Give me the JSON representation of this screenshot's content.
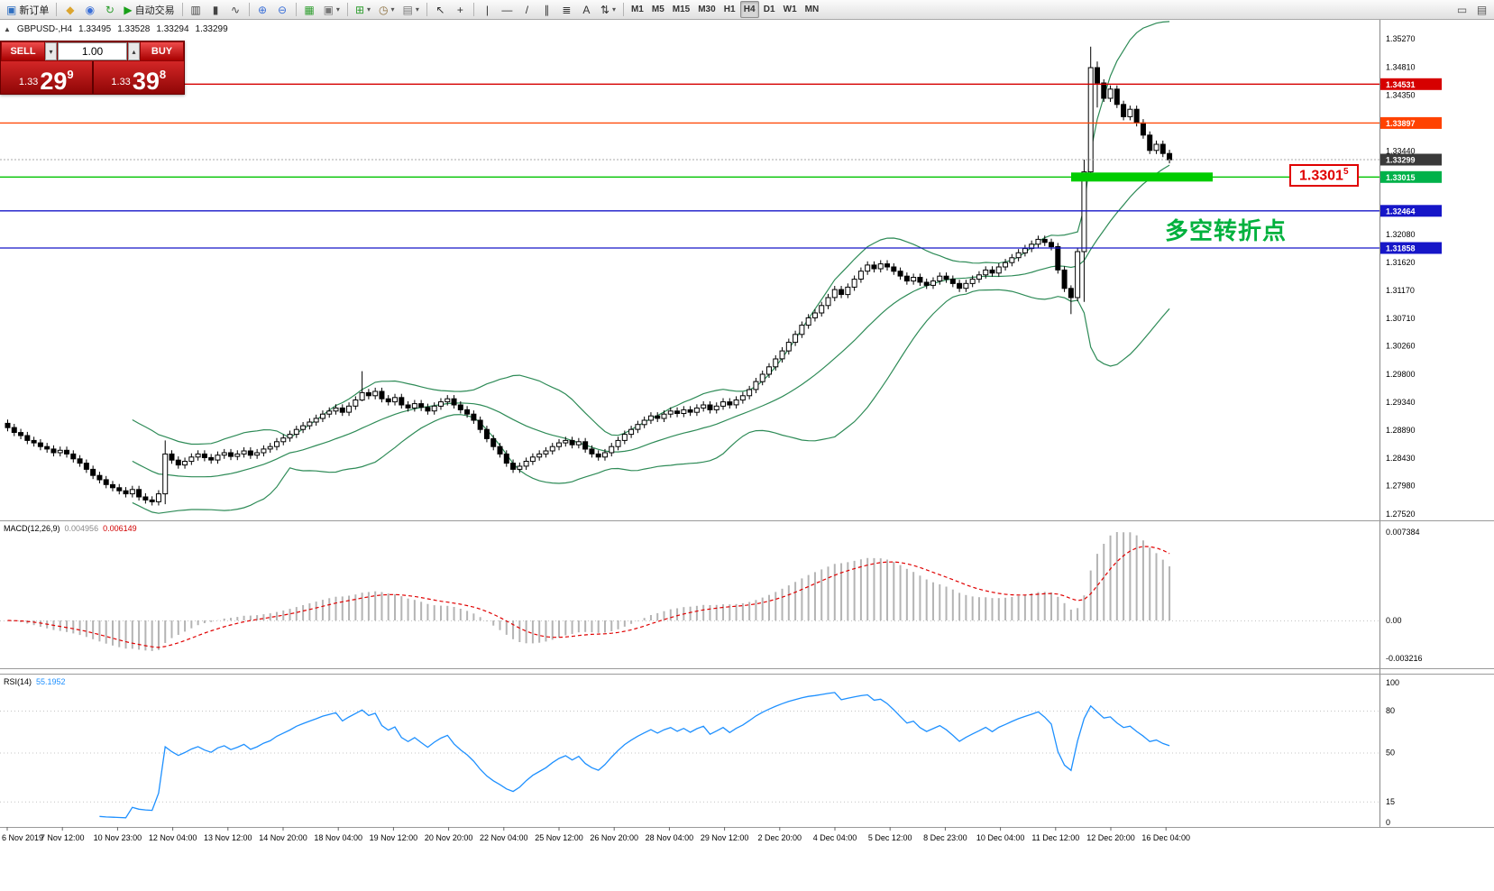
{
  "icons": {
    "caret": "▾",
    "spin_down": "▾",
    "spin_up": "▴",
    "collapse": "▲"
  },
  "colors": {
    "bull": "#ffffff",
    "bear": "#000000",
    "outline": "#000000",
    "bollinger": "#2e8b57",
    "macd_hist": "#b4b4b4",
    "macd_signal": "#e00000",
    "rsi_line": "#1e90ff",
    "grid_dotted": "#c4c4c4",
    "accent_red": "#d60000",
    "accent_orange": "#ff4200",
    "accent_green": "#00c400",
    "accent_blue": "#1616c8"
  },
  "toolbar": {
    "items": [
      {
        "name": "new-order-button",
        "icon": "order-ticket-icon",
        "glyph": "▣",
        "color": "#2f6fc1",
        "label": "新订单"
      },
      {
        "type": "sep"
      },
      {
        "name": "deposit-button",
        "icon": "gold-icon",
        "glyph": "◆",
        "color": "#dca52e"
      },
      {
        "name": "community-button",
        "icon": "globe-icon",
        "glyph": "◉",
        "color": "#3a6fd8"
      },
      {
        "name": "refresh-button",
        "icon": "refresh-icon",
        "glyph": "↻",
        "color": "#2e9e2e"
      },
      {
        "name": "autotrading-button",
        "icon": "play-icon",
        "glyph": "▶",
        "color": "#18a018",
        "label": "自动交易"
      },
      {
        "type": "sep"
      },
      {
        "name": "bar-chart-button",
        "icon": "ohlc-bars-icon",
        "glyph": "▥",
        "color": "#444444"
      },
      {
        "name": "candlestick-chart-button",
        "icon": "candlestick-icon",
        "glyph": "▮",
        "color": "#444444"
      },
      {
        "name": "line-chart-button",
        "icon": "line-chart-icon",
        "glyph": "∿",
        "color": "#444444"
      },
      {
        "type": "sep"
      },
      {
        "name": "zoom-in-button",
        "icon": "zoom-in-icon",
        "glyph": "⊕",
        "color": "#3a6fd8"
      },
      {
        "name": "zoom-out-button",
        "icon": "zoom-out-icon",
        "glyph": "⊖",
        "color": "#3a6fd8"
      },
      {
        "type": "sep"
      },
      {
        "name": "tile-windows-button",
        "icon": "tile-windows-icon",
        "glyph": "▦",
        "color": "#2e9e2e"
      },
      {
        "name": "cascade-windows-button",
        "icon": "cascade-icon",
        "glyph": "▣",
        "color": "#777777",
        "caret": true
      },
      {
        "type": "sep"
      },
      {
        "name": "new-chart-button",
        "icon": "new-chart-icon",
        "glyph": "⊞",
        "color": "#2e9e2e",
        "caret": true
      },
      {
        "name": "profiles-button",
        "icon": "profiles-icon",
        "glyph": "◷",
        "color": "#8a6d3b",
        "caret": true
      },
      {
        "name": "templates-button",
        "icon": "template-icon",
        "glyph": "▤",
        "color": "#777777",
        "caret": true
      },
      {
        "type": "sep"
      },
      {
        "name": "cursor-button",
        "icon": "cursor-icon",
        "glyph": "↖",
        "color": "#333333"
      },
      {
        "name": "crosshair-button",
        "icon": "crosshair-icon",
        "glyph": "+",
        "color": "#333333"
      },
      {
        "type": "sep"
      },
      {
        "name": "vertical-line-button",
        "icon": "vertical-line-icon",
        "glyph": "|",
        "color": "#333333"
      },
      {
        "name": "horizontal-line-button",
        "icon": "horizontal-line-icon",
        "glyph": "—",
        "color": "#333333"
      },
      {
        "name": "trendline-button",
        "icon": "trendline-icon",
        "glyph": "/",
        "color": "#333333"
      },
      {
        "name": "channel-button",
        "icon": "channel-icon",
        "glyph": "∥",
        "color": "#333333"
      },
      {
        "name": "fibonacci-button",
        "icon": "fibonacci-icon",
        "glyph": "≣",
        "color": "#333333"
      },
      {
        "name": "text-button",
        "icon": "text-icon",
        "glyph": "A",
        "color": "#333333"
      },
      {
        "name": "arrows-button",
        "icon": "arrows-icon",
        "glyph": "⇅",
        "color": "#333333",
        "caret": true
      },
      {
        "type": "sep"
      },
      {
        "name": "timeframe-m1-button",
        "label": "M1",
        "tf": true
      },
      {
        "name": "timeframe-m5-button",
        "label": "M5",
        "tf": true
      },
      {
        "name": "timeframe-m15-button",
        "label": "M15",
        "tf": true
      },
      {
        "name": "timeframe-m30-button",
        "label": "M30",
        "tf": true
      },
      {
        "name": "timeframe-h1-button",
        "label": "H1",
        "tf": true
      },
      {
        "name": "timeframe-h4-button",
        "label": "H4",
        "tf": true,
        "active": true
      },
      {
        "name": "timeframe-d1-button",
        "label": "D1",
        "tf": true
      },
      {
        "name": "timeframe-w1-button",
        "label": "W1",
        "tf": true
      },
      {
        "name": "timeframe-mn-button",
        "label": "MN",
        "tf": true
      },
      {
        "type": "spacer"
      },
      {
        "name": "chart-shift-button",
        "icon": "panel-icon",
        "glyph": "▭",
        "color": "#555555"
      },
      {
        "name": "auto-scroll-button",
        "icon": "scroll-icon",
        "glyph": "▤",
        "color": "#555555"
      }
    ],
    "active_timeframe": "H4"
  },
  "chart_header": {
    "symbol_period": "GBPUSD-,H4",
    "open": "1.33495",
    "high": "1.33528",
    "low": "1.33294",
    "close": "1.33299"
  },
  "trade_widget": {
    "sell_label": "SELL",
    "buy_label": "BUY",
    "volume": "1.00",
    "sell_price": {
      "small": "1.33",
      "big": "29",
      "sup": "9"
    },
    "buy_price": {
      "small": "1.33",
      "big": "39",
      "sup": "8"
    }
  },
  "annotations": {
    "turning_point": "多空转折点",
    "price_box": {
      "main": "1.3301",
      "sup": "5"
    },
    "thick_level": {
      "price": 1.33015,
      "color": "#00cc00"
    }
  },
  "current_price": 1.33299,
  "levels": [
    {
      "price": 1.34531,
      "color": "#d60000"
    },
    {
      "price": 1.33897,
      "color": "#ff4200"
    },
    {
      "price": 1.33015,
      "color": "#00c400"
    },
    {
      "price": 1.32464,
      "color": "#1616c8"
    },
    {
      "price": 1.31858,
      "color": "#1616c8"
    }
  ],
  "axes": {
    "price_labels": [
      "1.35270",
      "1.34810",
      "1.34350",
      "1.33440",
      "1.32080",
      "1.31620",
      "1.31170",
      "1.30710",
      "1.30260",
      "1.29800",
      "1.29340",
      "1.28890",
      "1.28430",
      "1.27980",
      "1.27520"
    ],
    "price_tags": [
      {
        "text": "1.34531",
        "color": "#d60000"
      },
      {
        "text": "1.33897",
        "color": "#ff4200"
      },
      {
        "text": "1.33299",
        "color": "#3a3a3a"
      },
      {
        "text": "1.33015",
        "color": "#00b24a"
      },
      {
        "text": "1.32464",
        "color": "#1616c8"
      },
      {
        "text": "1.31858",
        "color": "#1616c8"
      }
    ],
    "macd_labels": [
      "0.007384",
      "0.00",
      "-0.003216"
    ],
    "rsi_labels": [
      "100",
      "80",
      "50",
      "15",
      "0"
    ],
    "date_labels": [
      "6 Nov 2019",
      "7 Nov 12:00",
      "10 Nov 23:00",
      "12 Nov 04:00",
      "13 Nov 12:00",
      "14 Nov 20:00",
      "18 Nov 04:00",
      "19 Nov 12:00",
      "20 Nov 20:00",
      "22 Nov 04:00",
      "25 Nov 12:00",
      "26 Nov 20:00",
      "28 Nov 04:00",
      "29 Nov 12:00",
      "2 Dec 20:00",
      "4 Dec 04:00",
      "5 Dec 12:00",
      "8 Dec 23:00",
      "10 Dec 04:00",
      "11 Dec 12:00",
      "12 Dec 20:00",
      "16 Dec 04:00"
    ]
  },
  "indicator_labels": {
    "macd": {
      "name": "MACD(12,26,9)",
      "main": "0.004956",
      "signal": "0.006149"
    },
    "rsi": {
      "name": "RSI(14)",
      "value": "55.1952"
    }
  },
  "chart_data": {
    "type": "candlestick",
    "symbol": "GBPUSD-",
    "timeframe": "H4",
    "price_range": [
      1.2752,
      1.3527
    ],
    "first_open": 1.29,
    "closes": [
      1.2893,
      1.2885,
      1.288,
      1.2872,
      1.2868,
      1.2862,
      1.2858,
      1.2852,
      1.2856,
      1.285,
      1.2842,
      1.2835,
      1.2825,
      1.2815,
      1.2808,
      1.28,
      1.2795,
      1.279,
      1.2785,
      1.2792,
      1.278,
      1.2775,
      1.2772,
      1.2785,
      1.285,
      1.284,
      1.2832,
      1.2838,
      1.2845,
      1.285,
      1.2844,
      1.284,
      1.2848,
      1.2852,
      1.2846,
      1.285,
      1.2855,
      1.2848,
      1.2852,
      1.2858,
      1.2862,
      1.287,
      1.2876,
      1.2882,
      1.289,
      1.2896,
      1.2902,
      1.2908,
      1.2915,
      1.292,
      1.2925,
      1.2918,
      1.2928,
      1.2938,
      1.295,
      1.2945,
      1.2952,
      1.294,
      1.2935,
      1.2942,
      1.293,
      1.2925,
      1.2932,
      1.2926,
      1.292,
      1.2928,
      1.2935,
      1.294,
      1.293,
      1.2922,
      1.2915,
      1.2905,
      1.289,
      1.2875,
      1.2862,
      1.285,
      1.2835,
      1.2825,
      1.283,
      1.2838,
      1.2845,
      1.285,
      1.2855,
      1.2862,
      1.2868,
      1.2872,
      1.2865,
      1.287,
      1.2858,
      1.285,
      1.2845,
      1.2852,
      1.2862,
      1.2872,
      1.2882,
      1.289,
      1.2898,
      1.2905,
      1.2912,
      1.2908,
      1.2915,
      1.292,
      1.2916,
      1.2922,
      1.2918,
      1.2925,
      1.293,
      1.2922,
      1.2928,
      1.2935,
      1.293,
      1.2938,
      1.2945,
      1.2955,
      1.2968,
      1.298,
      1.2992,
      1.3005,
      1.3018,
      1.3032,
      1.3045,
      1.306,
      1.3072,
      1.308,
      1.3092,
      1.3105,
      1.3118,
      1.311,
      1.3122,
      1.3135,
      1.3148,
      1.3158,
      1.3152,
      1.316,
      1.3155,
      1.3148,
      1.314,
      1.3132,
      1.3138,
      1.313,
      1.3125,
      1.3132,
      1.314,
      1.3135,
      1.3128,
      1.312,
      1.3128,
      1.3135,
      1.3142,
      1.315,
      1.3145,
      1.3155,
      1.3162,
      1.317,
      1.3178,
      1.3185,
      1.3192,
      1.32,
      1.3195,
      1.3188,
      1.315,
      1.312,
      1.3105,
      1.318,
      1.331,
      1.348,
      1.3455,
      1.343,
      1.3445,
      1.342,
      1.34,
      1.3412,
      1.339,
      1.337,
      1.3345,
      1.3355,
      1.334,
      1.33299
    ],
    "wicks": {
      "24": [
        1.2872,
        1.2768
      ],
      "54": [
        1.2985,
        1.2936
      ],
      "162": [
        1.3125,
        1.3078
      ],
      "164": [
        1.333,
        1.3098
      ],
      "165": [
        1.3514,
        1.33
      ],
      "166": [
        1.349,
        1.3415
      ]
    },
    "indicators": {
      "bollinger": {
        "period": 20,
        "deviation": 2
      },
      "macd": {
        "fast": 12,
        "slow": 26,
        "signal": 9
      },
      "rsi": {
        "period": 14
      }
    }
  }
}
